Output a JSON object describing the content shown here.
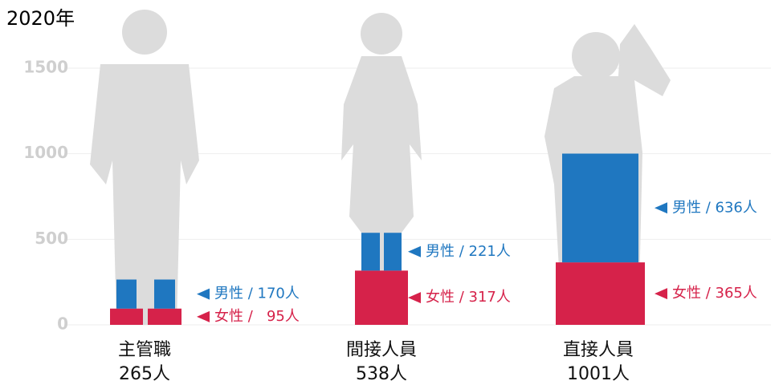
{
  "chart_data": {
    "type": "pictogram-stacked-bar",
    "title": "2020年",
    "categories": [
      "主管職",
      "間接人員",
      "直接人員"
    ],
    "total_labels": [
      "265人",
      "538人",
      "1001人"
    ],
    "series": [
      {
        "color": "#d6224a",
        "values": [
          95,
          317,
          365
        ],
        "value_labels": [
          "女性 /   95人",
          "女性 / 317人",
          "女性 / 365人"
        ]
      },
      {
        "color": "#1f77c0",
        "values": [
          170,
          221,
          636
        ],
        "value_labels": [
          "男性 / 170人",
          "男性 / 221人",
          "男性 / 636人"
        ]
      }
    ],
    "ylim": [
      0,
      1500
    ],
    "yticks": [
      0,
      500,
      1000,
      1500
    ],
    "grid": true
  }
}
